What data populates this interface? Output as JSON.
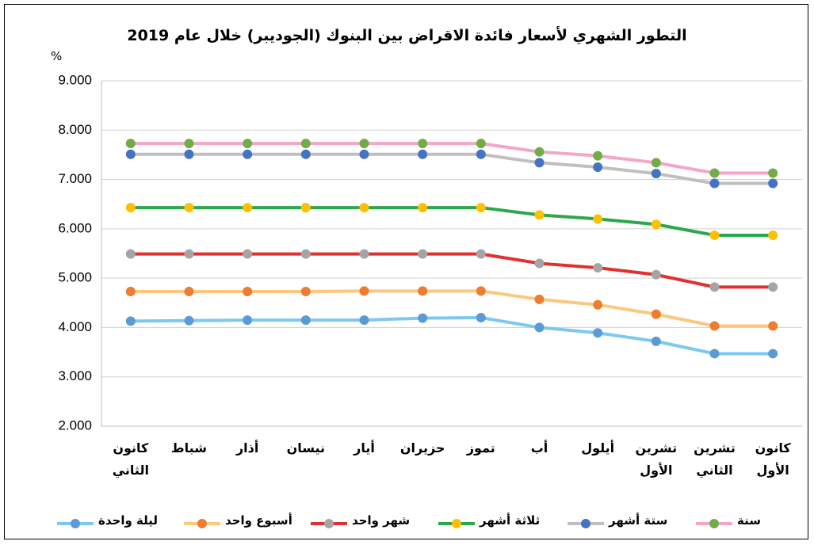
{
  "chart_data": {
    "type": "line",
    "title": "التطور الشهري لأسعار فائدة الاقراض بين البنوك (الجوديبر) خلال عام 2019",
    "y_label": "%",
    "categories": [
      "كانون الثاني",
      "شباط",
      "أذار",
      "نيسان",
      "أيار",
      "حزيران",
      "تموز",
      "أب",
      "أيلول",
      "تشرين الأول",
      "تشرين الثاني",
      "كانون الأول"
    ],
    "ylim": [
      2,
      9
    ],
    "yticks": [
      {
        "value": 2,
        "label": "2.000"
      },
      {
        "value": 3,
        "label": "3.000"
      },
      {
        "value": 4,
        "label": "4.000"
      },
      {
        "value": 5,
        "label": "5.000"
      },
      {
        "value": 6,
        "label": "6.000"
      },
      {
        "value": 7,
        "label": "7.000"
      },
      {
        "value": 8,
        "label": "8.000"
      },
      {
        "value": 9,
        "label": "9.000"
      }
    ],
    "grid": true,
    "legend": "bottom",
    "series": [
      {
        "name": "ليلة واحدة",
        "color": "#7cc8f0",
        "marker_color": "#5b9bd5",
        "values": [
          4.13,
          4.14,
          4.15,
          4.15,
          4.15,
          4.19,
          4.2,
          4.0,
          3.89,
          3.72,
          3.47,
          3.47
        ]
      },
      {
        "name": "أسبوع واحد",
        "color": "#fdc77c",
        "marker_color": "#ed7d31",
        "values": [
          4.73,
          4.73,
          4.73,
          4.73,
          4.74,
          4.74,
          4.74,
          4.57,
          4.46,
          4.27,
          4.03,
          4.03
        ]
      },
      {
        "name": "شهر واحد",
        "color": "#e03030",
        "marker_color": "#a5a5a5",
        "values": [
          5.49,
          5.49,
          5.49,
          5.49,
          5.49,
          5.49,
          5.49,
          5.3,
          5.21,
          5.07,
          4.82,
          4.82
        ]
      },
      {
        "name": "ثلاثة أشهر",
        "color": "#2ca84a",
        "marker_color": "#ffc000",
        "values": [
          6.43,
          6.43,
          6.43,
          6.43,
          6.43,
          6.43,
          6.43,
          6.28,
          6.2,
          6.09,
          5.87,
          5.87
        ]
      },
      {
        "name": "ستة أشهر",
        "color": "#bfbfbf",
        "marker_color": "#4472c4",
        "values": [
          7.51,
          7.51,
          7.51,
          7.51,
          7.51,
          7.51,
          7.51,
          7.34,
          7.25,
          7.12,
          6.92,
          6.92
        ]
      },
      {
        "name": "سنة",
        "color": "#f4a6c8",
        "marker_color": "#70ad47",
        "values": [
          7.73,
          7.73,
          7.73,
          7.73,
          7.73,
          7.73,
          7.73,
          7.56,
          7.48,
          7.34,
          7.13,
          7.13
        ]
      }
    ]
  }
}
